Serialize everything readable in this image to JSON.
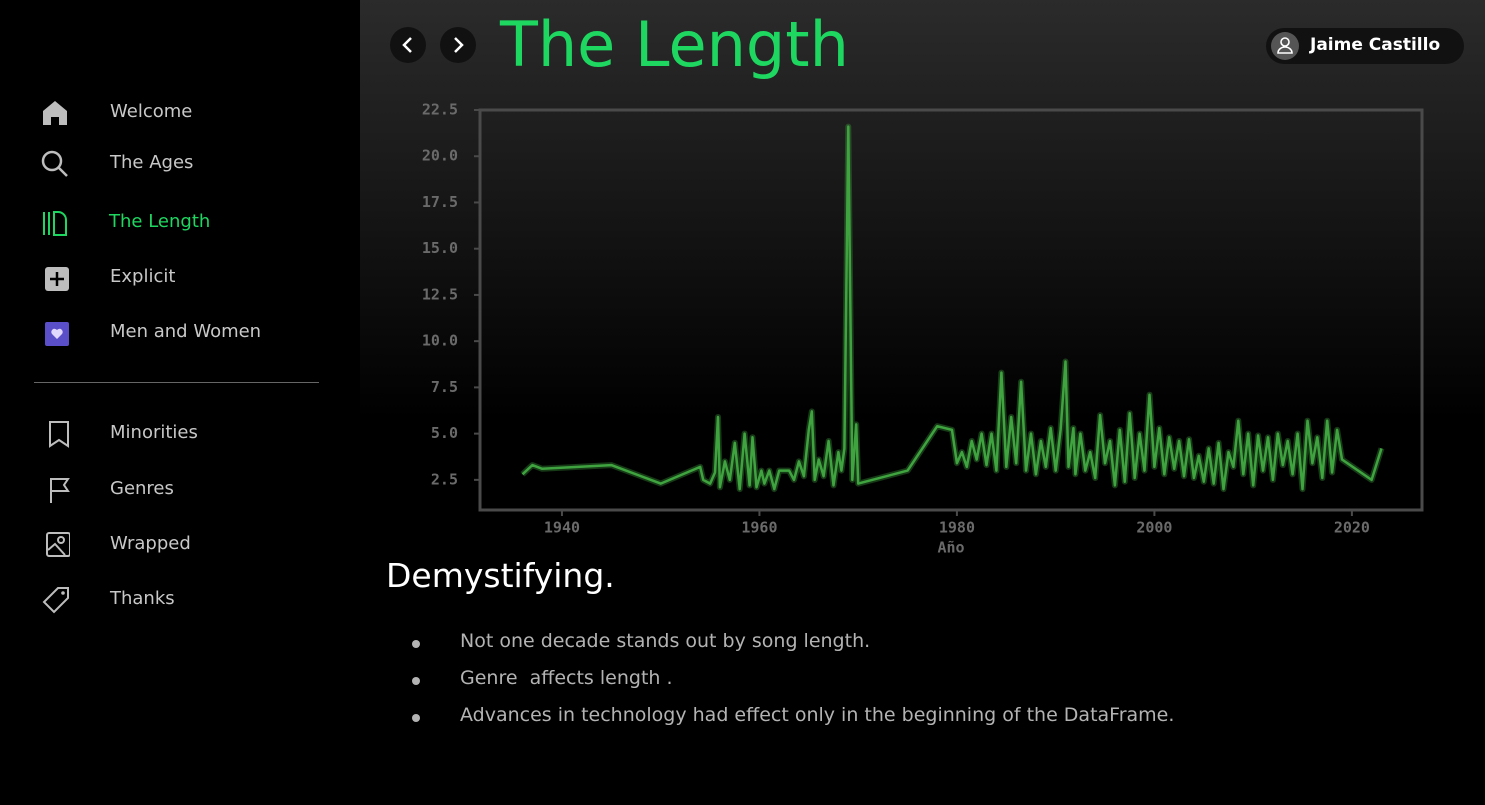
{
  "sidebar": {
    "nav": [
      "Welcome",
      "The Ages",
      "The Length",
      "Explicit",
      "Men and Women"
    ],
    "secondary": [
      "Minorities",
      "Genres",
      "Wrapped",
      "Thanks"
    ]
  },
  "header": {
    "title": "The Length",
    "user": "Jaime Castillo"
  },
  "chart_data": {
    "type": "line",
    "xlabel": "Año",
    "color": "#3fa33f",
    "x": [
      1936,
      1937,
      1938,
      1945,
      1950,
      1954,
      1954.3,
      1955,
      1955.5,
      1955.8,
      1956,
      1956.5,
      1957,
      1957.5,
      1958,
      1958.5,
      1959,
      1959.3,
      1959.7,
      1960.2,
      1960.5,
      1961,
      1961.5,
      1962,
      1963,
      1963.5,
      1964,
      1964.5,
      1965,
      1965.3,
      1965.6,
      1966,
      1966.5,
      1967,
      1967.5,
      1968,
      1968.3,
      1968.6,
      1969,
      1969.4,
      1969.8,
      1970,
      1975,
      1978,
      1979.5,
      1980,
      1980.5,
      1981,
      1981.5,
      1982,
      1982.5,
      1983,
      1983.5,
      1984,
      1984.5,
      1985,
      1985.5,
      1986,
      1986.5,
      1987,
      1987.5,
      1988,
      1988.5,
      1989,
      1989.5,
      1990,
      1990.5,
      1991,
      1991.3,
      1991.8,
      1992,
      1992.5,
      1993,
      1993.5,
      1994,
      1994.5,
      1995,
      1995.5,
      1996,
      1996.5,
      1997,
      1997.5,
      1998,
      1998.5,
      1999,
      1999.5,
      2000,
      2000.5,
      2001,
      2001.5,
      2002,
      2002.5,
      2003,
      2003.5,
      2004,
      2004.5,
      2005,
      2005.5,
      2006,
      2006.5,
      2007,
      2007.5,
      2008,
      2008.5,
      2009,
      2009.5,
      2010,
      2010.5,
      2011,
      2011.5,
      2012,
      2012.5,
      2013,
      2013.5,
      2014,
      2014.5,
      2015,
      2015.5,
      2016,
      2016.5,
      2017,
      2017.5,
      2018,
      2018.5,
      2019,
      2022,
      2023
    ],
    "values": [
      2.8,
      3.3,
      3.1,
      3.3,
      2.3,
      3.2,
      2.5,
      2.3,
      2.9,
      5.9,
      2.1,
      3.5,
      2.5,
      4.5,
      2.0,
      5.0,
      2.2,
      4.8,
      2.1,
      3.0,
      2.3,
      3.0,
      2.0,
      3.0,
      3.0,
      2.5,
      3.5,
      2.7,
      5.2,
      6.2,
      2.5,
      3.6,
      2.7,
      4.6,
      2.2,
      4.0,
      3.0,
      4.2,
      21.6,
      2.5,
      5.5,
      2.3,
      3.0,
      5.4,
      5.2,
      3.4,
      4.0,
      3.2,
      4.6,
      3.6,
      5.0,
      3.3,
      5.0,
      3.0,
      8.3,
      3.2,
      5.9,
      3.4,
      7.8,
      3.0,
      5.0,
      2.8,
      4.6,
      3.2,
      5.3,
      3.0,
      5.2,
      8.9,
      3.2,
      5.3,
      2.8,
      5.0,
      3.0,
      4.0,
      2.6,
      6.0,
      3.4,
      4.6,
      2.2,
      5.2,
      2.4,
      6.1,
      2.6,
      5.0,
      3.0,
      7.1,
      3.2,
      5.3,
      2.8,
      4.8,
      3.1,
      4.6,
      2.7,
      4.7,
      2.6,
      3.8,
      2.4,
      4.2,
      2.3,
      4.5,
      2.0,
      4.0,
      3.2,
      5.7,
      2.8,
      5.0,
      2.2,
      4.9,
      3.0,
      4.8,
      2.5,
      5.0,
      3.3,
      4.6,
      2.8,
      5.0,
      2.0,
      5.7,
      3.4,
      4.8,
      2.6,
      5.7,
      2.9,
      5.2,
      3.6,
      2.5,
      4.2
    ],
    "xlim": [
      1931.7,
      2027.1
    ],
    "ylim": [
      0.87,
      22.5
    ],
    "xticks": [
      1940,
      1960,
      1980,
      2000,
      2020
    ],
    "yticks": [
      2.5,
      {
        "value": 5,
        "label": "5.0"
      },
      7.5,
      {
        "value": 10,
        "label": "10.0"
      },
      12.5,
      {
        "value": 15,
        "label": "15.0"
      },
      17.5,
      {
        "value": 20,
        "label": "20.0"
      },
      22.5
    ]
  },
  "content": {
    "heading": "Demystifying.",
    "bullets": [
      "Not one decade stands out by song length.",
      "Genre  affects length .",
      "Advances in technology had effect only in the beginning of the DataFrame."
    ]
  }
}
